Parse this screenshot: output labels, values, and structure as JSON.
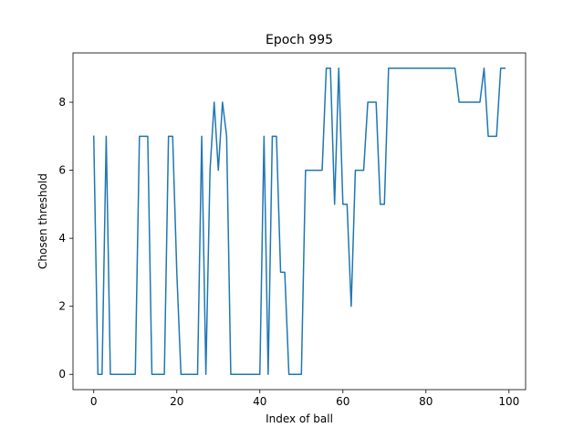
{
  "chart_data": {
    "type": "line",
    "title": "Epoch 995",
    "xlabel": "Index of ball",
    "ylabel": "Chosen threshold",
    "xlim": [
      -5,
      104
    ],
    "ylim": [
      -0.45,
      9.45
    ],
    "xticks": [
      0,
      20,
      40,
      60,
      80,
      100
    ],
    "yticks": [
      0,
      2,
      4,
      6,
      8
    ],
    "grid": false,
    "color": "#1f77b4",
    "series": [
      {
        "x": [
          0,
          1,
          2,
          3,
          4,
          5,
          6,
          7,
          8,
          9,
          10,
          11,
          12,
          13,
          14,
          15,
          16,
          17,
          18,
          19,
          20,
          21,
          22,
          23,
          24,
          25,
          26,
          27,
          28,
          29,
          30,
          31,
          32,
          33,
          34,
          35,
          36,
          37,
          38,
          39,
          40,
          41,
          42,
          43,
          44,
          45,
          46,
          47,
          48,
          49,
          50,
          51,
          52,
          53,
          54,
          55,
          56,
          57,
          58,
          59,
          60,
          61,
          62,
          63,
          64,
          65,
          66,
          67,
          68,
          69,
          70,
          71,
          72,
          73,
          74,
          75,
          76,
          77,
          78,
          79,
          80,
          81,
          82,
          83,
          84,
          85,
          86,
          87,
          88,
          89,
          90,
          91,
          92,
          93,
          94,
          95,
          96,
          97,
          98,
          99
        ],
        "values": [
          7,
          0,
          0,
          7,
          0,
          0,
          0,
          0,
          0,
          0,
          0,
          7,
          7,
          7,
          0,
          0,
          0,
          0,
          7,
          7,
          3,
          0,
          0,
          0,
          0,
          0,
          7,
          0,
          6,
          8,
          6,
          8,
          7,
          0,
          0,
          0,
          0,
          0,
          0,
          0,
          0,
          7,
          0,
          7,
          7,
          3,
          3,
          0,
          0,
          0,
          0,
          6,
          6,
          6,
          6,
          6,
          9,
          9,
          5,
          9,
          5,
          5,
          2,
          6,
          6,
          6,
          8,
          8,
          8,
          5,
          5,
          9,
          9,
          9,
          9,
          9,
          9,
          9,
          9,
          9,
          9,
          9,
          9,
          9,
          9,
          9,
          9,
          9,
          8,
          8,
          8,
          8,
          8,
          8,
          9,
          7,
          7,
          7,
          9,
          9
        ]
      }
    ]
  }
}
